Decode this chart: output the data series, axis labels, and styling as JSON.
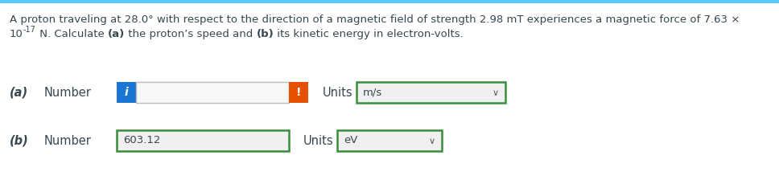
{
  "background_color": "#ffffff",
  "top_border_color": "#5bc8f5",
  "line1": "A proton traveling at 28.0° with respect to the direction of a magnetic field of strength 2.98 mT experiences a magnetic force of 7.63 ×",
  "line2_pre": "10",
  "line2_sup": "-17",
  "line2_mid1": " N. Calculate ",
  "line2_bold1": "(a)",
  "line2_mid2": " the proton’s speed and ",
  "line2_bold2": "(b)",
  "line2_end": " its kinetic energy in electron-volts.",
  "part_a_label": "(a)",
  "part_a_number_label": "Number",
  "part_a_units_label": "Units",
  "part_a_units_value": "m/s",
  "part_b_label": "(b)",
  "part_b_number_label": "Number",
  "part_b_number_value": "603.12",
  "part_b_units_label": "Units",
  "part_b_units_value": "eV",
  "info_button_color": "#1976D2",
  "warning_button_color": "#e65100",
  "input_border_color": "#388E3C",
  "dropdown_border_color": "#388E3C",
  "input_bg": "#f0f0f0",
  "text_color": "#37474f",
  "font_size": 9.5,
  "label_font_size": 10.5,
  "small_font": 8.5
}
